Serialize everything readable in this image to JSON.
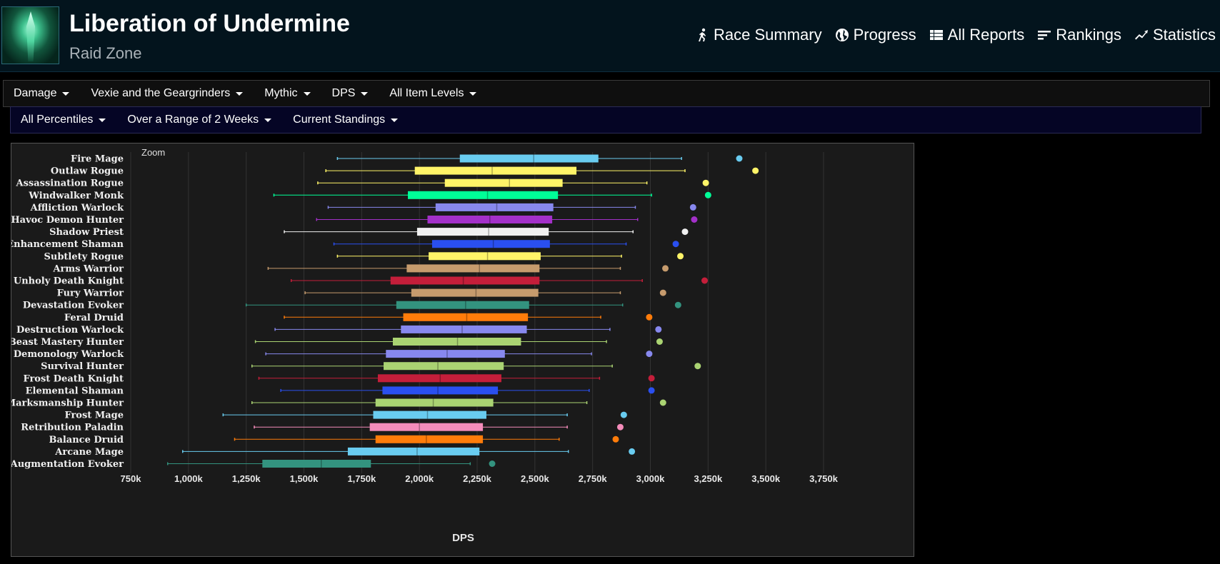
{
  "header": {
    "title": "Liberation of Undermine",
    "subtitle": "Raid Zone",
    "nav": [
      {
        "label": "Race Summary",
        "icon": "runner-icon"
      },
      {
        "label": "Progress",
        "icon": "globe-icon"
      },
      {
        "label": "All Reports",
        "icon": "list-icon"
      },
      {
        "label": "Rankings",
        "icon": "bars-icon"
      },
      {
        "label": "Statistics",
        "icon": "trend-icon"
      }
    ]
  },
  "filters_row1": [
    "Damage",
    "Vexie and the Geargrinders",
    "Mythic",
    "DPS",
    "All Item Levels"
  ],
  "filters_row2": [
    "All Percentiles",
    "Over a Range of 2 Weeks",
    "Current Standings"
  ],
  "chart": {
    "zoom_label": "Zoom"
  },
  "chart_data": {
    "type": "boxplot",
    "xlabel": "DPS",
    "xlim": [
      750,
      3750
    ],
    "x_unit": "k",
    "xticks": [
      "750k",
      "1,000k",
      "1,250k",
      "1,500k",
      "1,750k",
      "2,000k",
      "2,250k",
      "2,500k",
      "2,750k",
      "3,000k",
      "3,250k",
      "3,500k",
      "3,750k"
    ],
    "grid": true,
    "series": [
      {
        "name": "Fire Mage",
        "min": 1645,
        "q1": 2175,
        "median": 2495,
        "q3": 2775,
        "max": 3135,
        "outlier": 3385,
        "color": "#69ccf0"
      },
      {
        "name": "Outlaw Rogue",
        "min": 1595,
        "q1": 1980,
        "median": 2315,
        "q3": 2680,
        "max": 3150,
        "outlier": 3455,
        "color": "#fff468"
      },
      {
        "name": "Assassination Rogue",
        "min": 1560,
        "q1": 2110,
        "median": 2390,
        "q3": 2620,
        "max": 2985,
        "outlier": 3240,
        "color": "#fff468"
      },
      {
        "name": "Windwalker Monk",
        "min": 1370,
        "q1": 1950,
        "median": 2295,
        "q3": 2600,
        "max": 3005,
        "outlier": 3250,
        "color": "#00ff98"
      },
      {
        "name": "Affliction Warlock",
        "min": 1605,
        "q1": 2070,
        "median": 2335,
        "q3": 2580,
        "max": 2935,
        "outlier": 3185,
        "color": "#8788ee"
      },
      {
        "name": "Havoc Demon Hunter",
        "min": 1555,
        "q1": 2035,
        "median": 2305,
        "q3": 2575,
        "max": 2945,
        "outlier": 3190,
        "color": "#a330c9"
      },
      {
        "name": "Shadow Priest",
        "min": 1415,
        "q1": 1990,
        "median": 2300,
        "q3": 2560,
        "max": 2925,
        "outlier": 3150,
        "color": "#f0f0f0"
      },
      {
        "name": "Enhancement Shaman",
        "min": 1630,
        "q1": 2055,
        "median": 2320,
        "q3": 2565,
        "max": 2895,
        "outlier": 3110,
        "color": "#2a4ff0"
      },
      {
        "name": "Subtlety Rogue",
        "min": 1645,
        "q1": 2040,
        "median": 2295,
        "q3": 2525,
        "max": 2875,
        "outlier": 3130,
        "color": "#fff468"
      },
      {
        "name": "Arms Warrior",
        "min": 1345,
        "q1": 1945,
        "median": 2260,
        "q3": 2520,
        "max": 2870,
        "outlier": 3065,
        "color": "#c69b6d"
      },
      {
        "name": "Unholy Death Knight",
        "min": 1445,
        "q1": 1875,
        "median": 2190,
        "q3": 2520,
        "max": 2965,
        "outlier": 3235,
        "color": "#c41e3a"
      },
      {
        "name": "Fury Warrior",
        "min": 1505,
        "q1": 1965,
        "median": 2245,
        "q3": 2515,
        "max": 2870,
        "outlier": 3055,
        "color": "#c69b6d"
      },
      {
        "name": "Devastation Evoker",
        "min": 1250,
        "q1": 1900,
        "median": 2200,
        "q3": 2475,
        "max": 2880,
        "outlier": 3120,
        "color": "#33937f"
      },
      {
        "name": "Feral Druid",
        "min": 1415,
        "q1": 1930,
        "median": 2205,
        "q3": 2470,
        "max": 2785,
        "outlier": 2995,
        "color": "#ff7c0a"
      },
      {
        "name": "Destruction Warlock",
        "min": 1375,
        "q1": 1920,
        "median": 2185,
        "q3": 2465,
        "max": 2825,
        "outlier": 3035,
        "color": "#8788ee"
      },
      {
        "name": "Beast Mastery Hunter",
        "min": 1290,
        "q1": 1885,
        "median": 2165,
        "q3": 2440,
        "max": 2810,
        "outlier": 3040,
        "color": "#aad372"
      },
      {
        "name": "Demonology Warlock",
        "min": 1335,
        "q1": 1855,
        "median": 2120,
        "q3": 2370,
        "max": 2745,
        "outlier": 2995,
        "color": "#8788ee"
      },
      {
        "name": "Survival Hunter",
        "min": 1275,
        "q1": 1845,
        "median": 2080,
        "q3": 2365,
        "max": 2835,
        "outlier": 3205,
        "color": "#aad372"
      },
      {
        "name": "Frost Death Knight",
        "min": 1305,
        "q1": 1820,
        "median": 2090,
        "q3": 2355,
        "max": 2780,
        "outlier": 3005,
        "color": "#c41e3a"
      },
      {
        "name": "Elemental Shaman",
        "min": 1400,
        "q1": 1840,
        "median": 2080,
        "q3": 2340,
        "max": 2735,
        "outlier": 3005,
        "color": "#2a4ff0"
      },
      {
        "name": "Marksmanship Hunter",
        "min": 1275,
        "q1": 1810,
        "median": 2060,
        "q3": 2320,
        "max": 2725,
        "outlier": 3055,
        "color": "#aad372"
      },
      {
        "name": "Frost Mage",
        "min": 1150,
        "q1": 1800,
        "median": 2035,
        "q3": 2290,
        "max": 2640,
        "outlier": 2885,
        "color": "#69ccf0"
      },
      {
        "name": "Retribution Paladin",
        "min": 1285,
        "q1": 1785,
        "median": 2000,
        "q3": 2275,
        "max": 2640,
        "outlier": 2870,
        "color": "#f48cba"
      },
      {
        "name": "Balance Druid",
        "min": 1200,
        "q1": 1810,
        "median": 2030,
        "q3": 2275,
        "max": 2605,
        "outlier": 2850,
        "color": "#ff7c0a"
      },
      {
        "name": "Arcane Mage",
        "min": 975,
        "q1": 1690,
        "median": 1990,
        "q3": 2260,
        "max": 2645,
        "outlier": 2920,
        "color": "#69ccf0"
      },
      {
        "name": "Augmentation Evoker",
        "min": 910,
        "q1": 1320,
        "median": 1575,
        "q3": 1790,
        "max": 2220,
        "outlier": 2315,
        "color": "#33937f"
      }
    ]
  }
}
